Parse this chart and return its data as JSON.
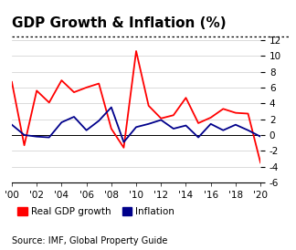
{
  "title": "GDP Growth & Inflation (%)",
  "source": "Source: IMF, Global Property Guide",
  "years": [
    2000,
    2001,
    2002,
    2003,
    2004,
    2005,
    2006,
    2007,
    2008,
    2009,
    2010,
    2011,
    2012,
    2013,
    2014,
    2015,
    2016,
    2017,
    2018,
    2019,
    2020
  ],
  "gdp_growth": [
    6.7,
    -1.3,
    5.6,
    4.1,
    6.9,
    5.4,
    6.0,
    6.5,
    0.8,
    -1.6,
    10.6,
    3.7,
    2.1,
    2.5,
    4.7,
    1.5,
    2.2,
    3.3,
    2.8,
    2.7,
    -3.5
  ],
  "inflation": [
    1.3,
    0.0,
    -0.2,
    -0.3,
    1.6,
    2.3,
    0.6,
    1.8,
    3.5,
    -0.9,
    1.0,
    1.4,
    1.9,
    0.8,
    1.2,
    -0.3,
    1.4,
    0.6,
    1.3,
    0.6,
    -0.2
  ],
  "gdp_color": "#FF0000",
  "inflation_color": "#00008B",
  "ylim": [
    -6,
    12
  ],
  "yticks": [
    -6,
    -4,
    -2,
    0,
    2,
    4,
    6,
    8,
    10,
    12
  ],
  "xticks": [
    2000,
    2002,
    2004,
    2006,
    2008,
    2010,
    2012,
    2014,
    2016,
    2018,
    2020
  ],
  "xtick_labels": [
    "'00",
    "'02",
    "'04",
    "'06",
    "'08",
    "'10",
    "'12",
    "'14",
    "'16",
    "'18",
    "'20"
  ],
  "background_color": "#FFFFFF",
  "grid_color": "#CCCCCC",
  "title_fontsize": 11,
  "legend_fontsize": 7.5,
  "tick_fontsize": 7.5,
  "source_fontsize": 7,
  "line_width": 1.3
}
